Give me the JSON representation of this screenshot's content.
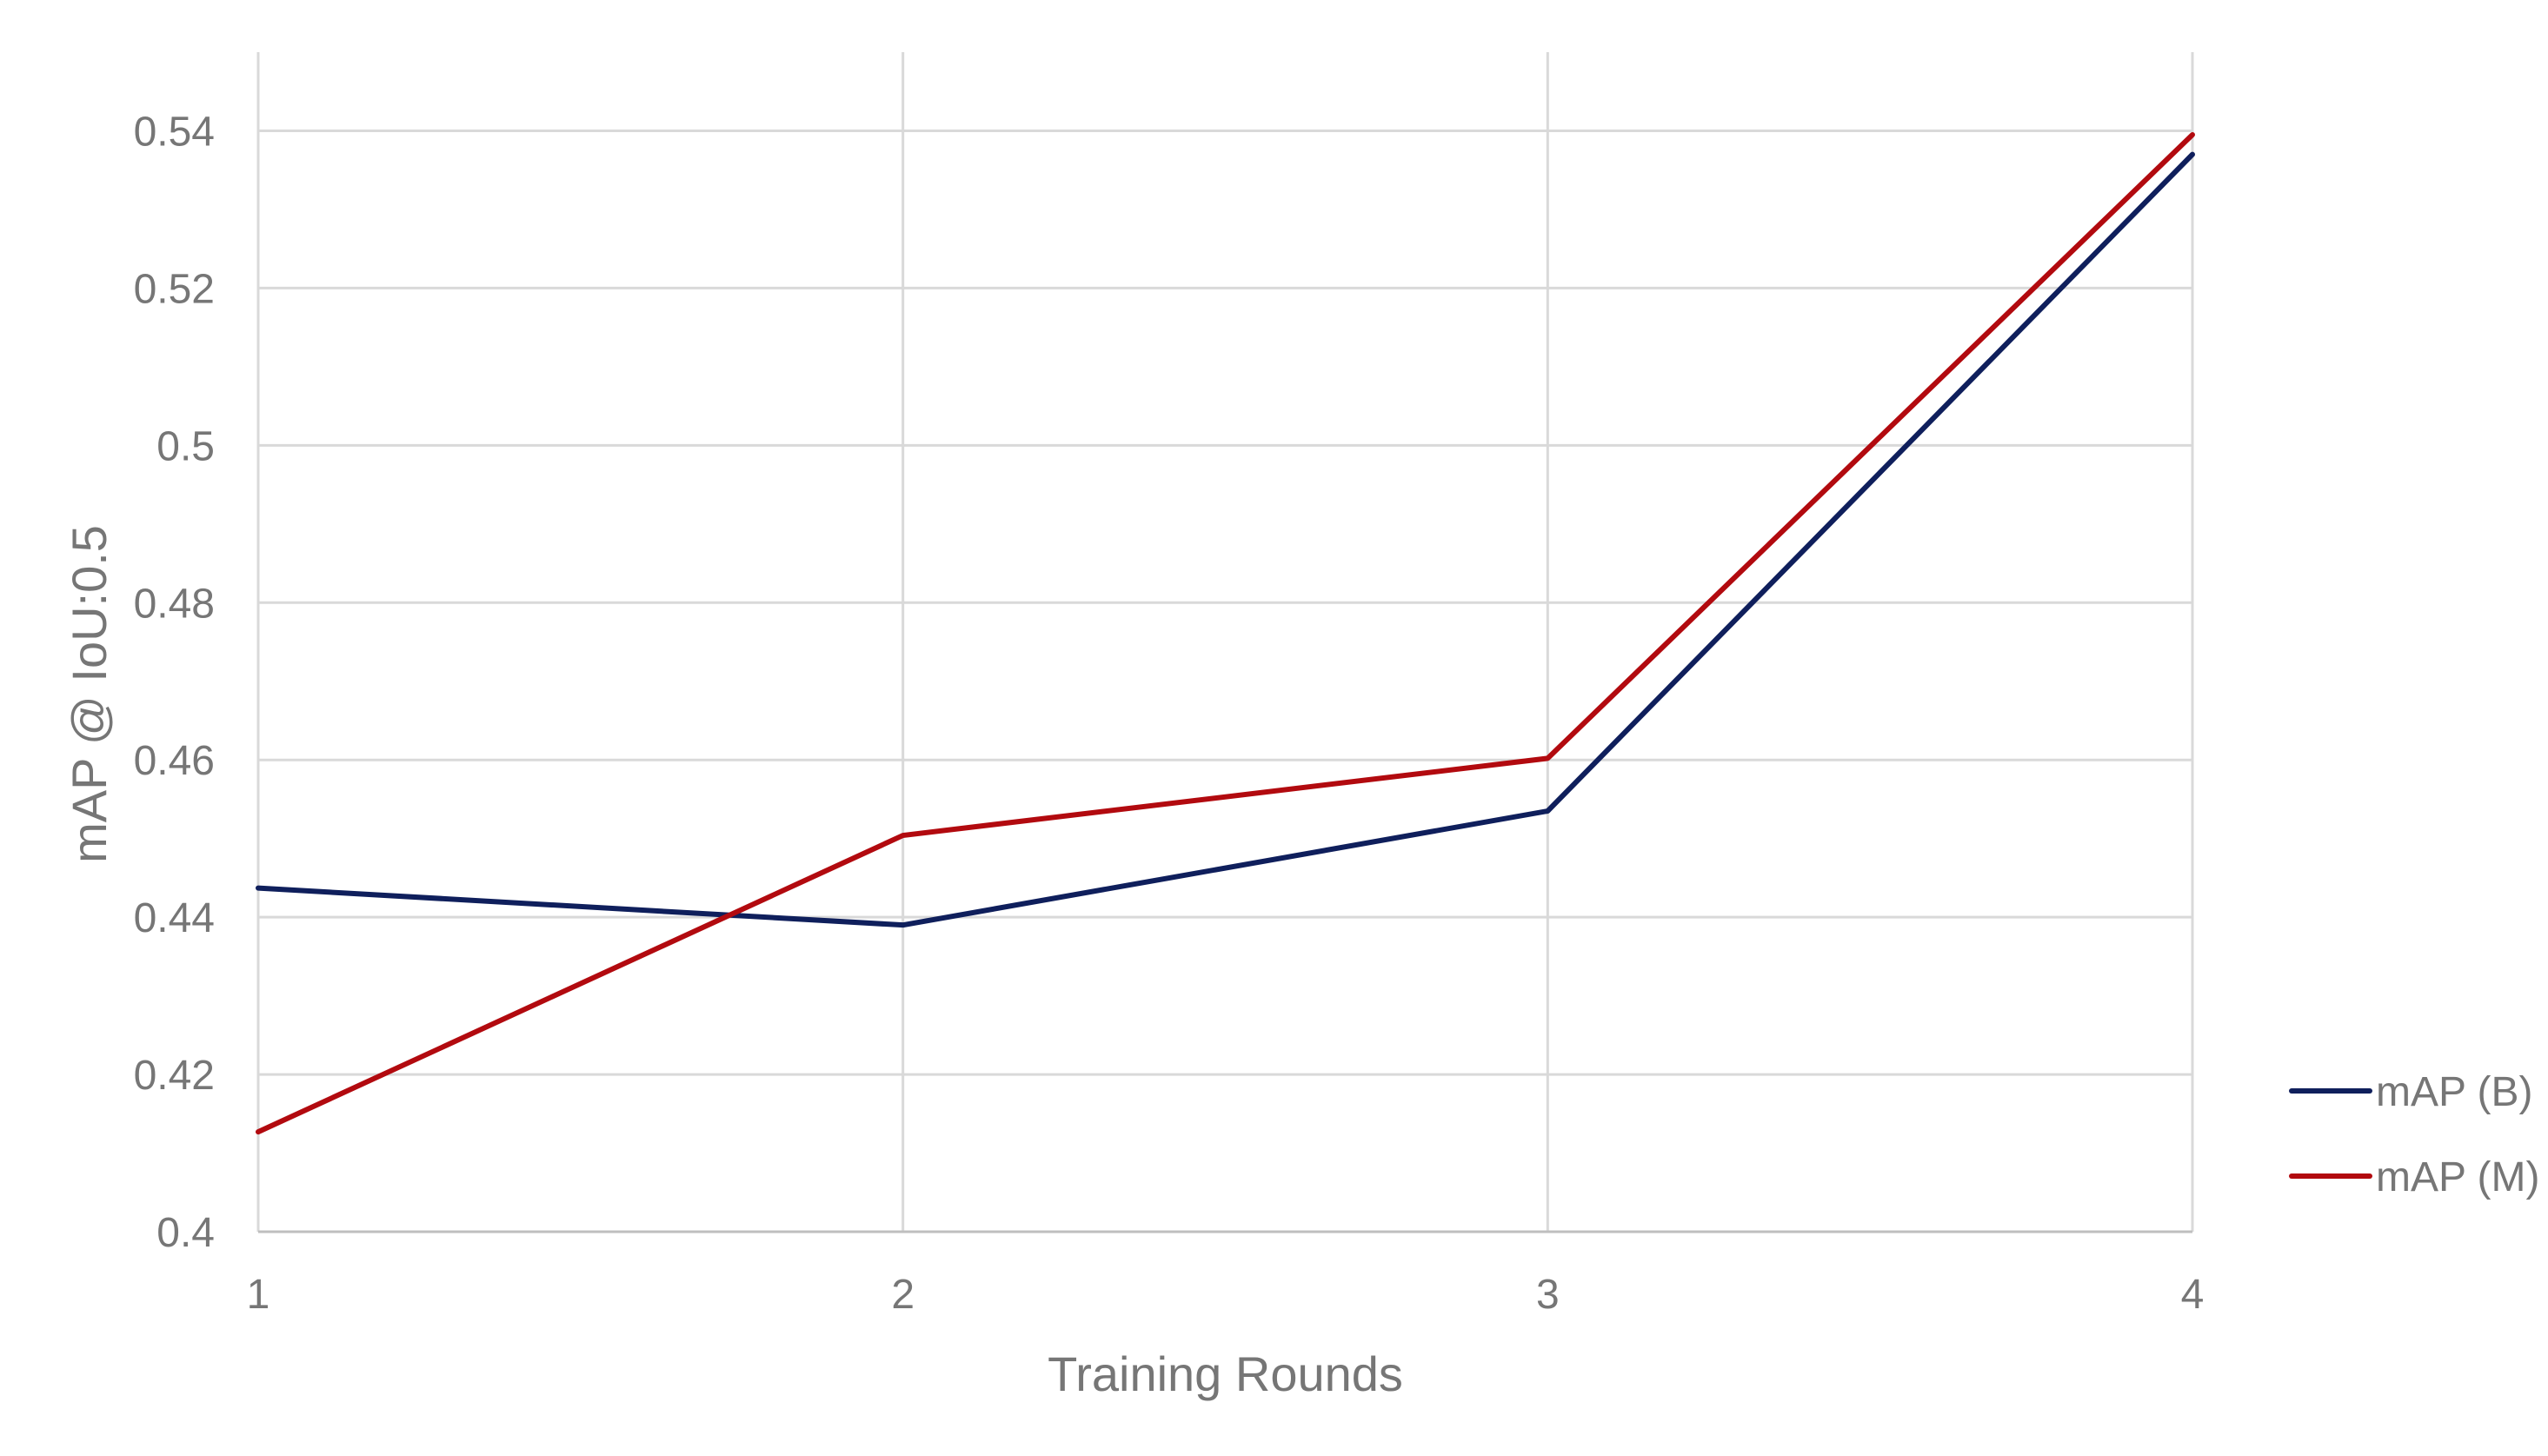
{
  "chart_data": {
    "type": "line",
    "title": "",
    "xlabel": "Training Rounds",
    "ylabel": "mAP @ IoU:0.5",
    "x": [
      1,
      2,
      3,
      4
    ],
    "x_tick_labels": [
      "1",
      "2",
      "3",
      "4"
    ],
    "y_tick_labels": [
      "0.4",
      "0.42",
      "0.44",
      "0.46",
      "0.48",
      "0.5",
      "0.52",
      "0.54"
    ],
    "ylim": [
      0.4,
      0.55
    ],
    "y_ticks": [
      0.4,
      0.42,
      0.44,
      0.46,
      0.48,
      0.5,
      0.52,
      0.54
    ],
    "grid": true,
    "legend_position": "right",
    "series": [
      {
        "name": "mAP (B)",
        "color": "#0f1f5c",
        "values": [
          0.4437,
          0.439,
          0.4535,
          0.537
        ]
      },
      {
        "name": "mAP (M)",
        "color": "#b20a0f",
        "values": [
          0.4127,
          0.4504,
          0.4602,
          0.5395
        ]
      }
    ]
  }
}
